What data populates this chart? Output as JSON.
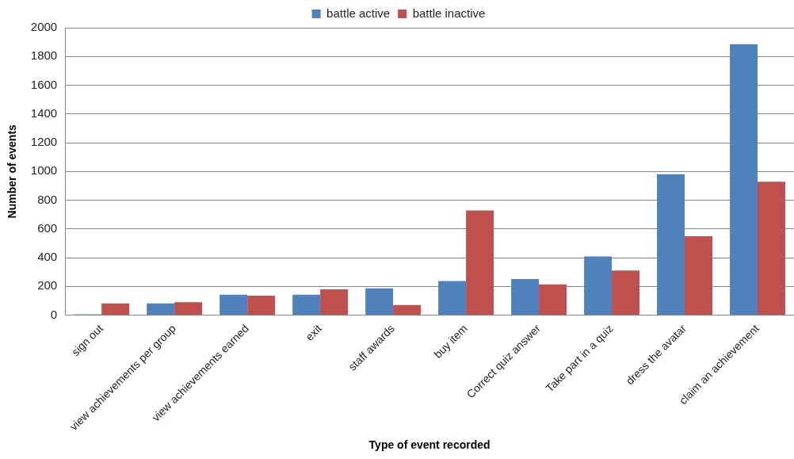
{
  "chart_data": {
    "type": "bar",
    "xlabel": "Type of event recorded",
    "ylabel": "Number of events",
    "categories": [
      "sign out",
      "view achievements per group",
      "view achievements earned",
      "exit",
      "staff awards",
      "buy item",
      "Correct quiz answer",
      "Take part in a quiz",
      "dress the avatar",
      "claim an achievement"
    ],
    "series": [
      {
        "name": "battle active",
        "color": "#4f81bd",
        "values": [
          6,
          82,
          142,
          142,
          186,
          238,
          252,
          408,
          981,
          1886
        ]
      },
      {
        "name": "battle inactive",
        "color": "#c0504d",
        "values": [
          82,
          90,
          136,
          180,
          70,
          729,
          214,
          310,
          549,
          929
        ]
      }
    ],
    "ylim": [
      0,
      2000
    ],
    "yticks": [
      0,
      200,
      400,
      600,
      800,
      1000,
      1200,
      1400,
      1600,
      1800,
      2000
    ],
    "grid": "y",
    "legend": "top"
  }
}
